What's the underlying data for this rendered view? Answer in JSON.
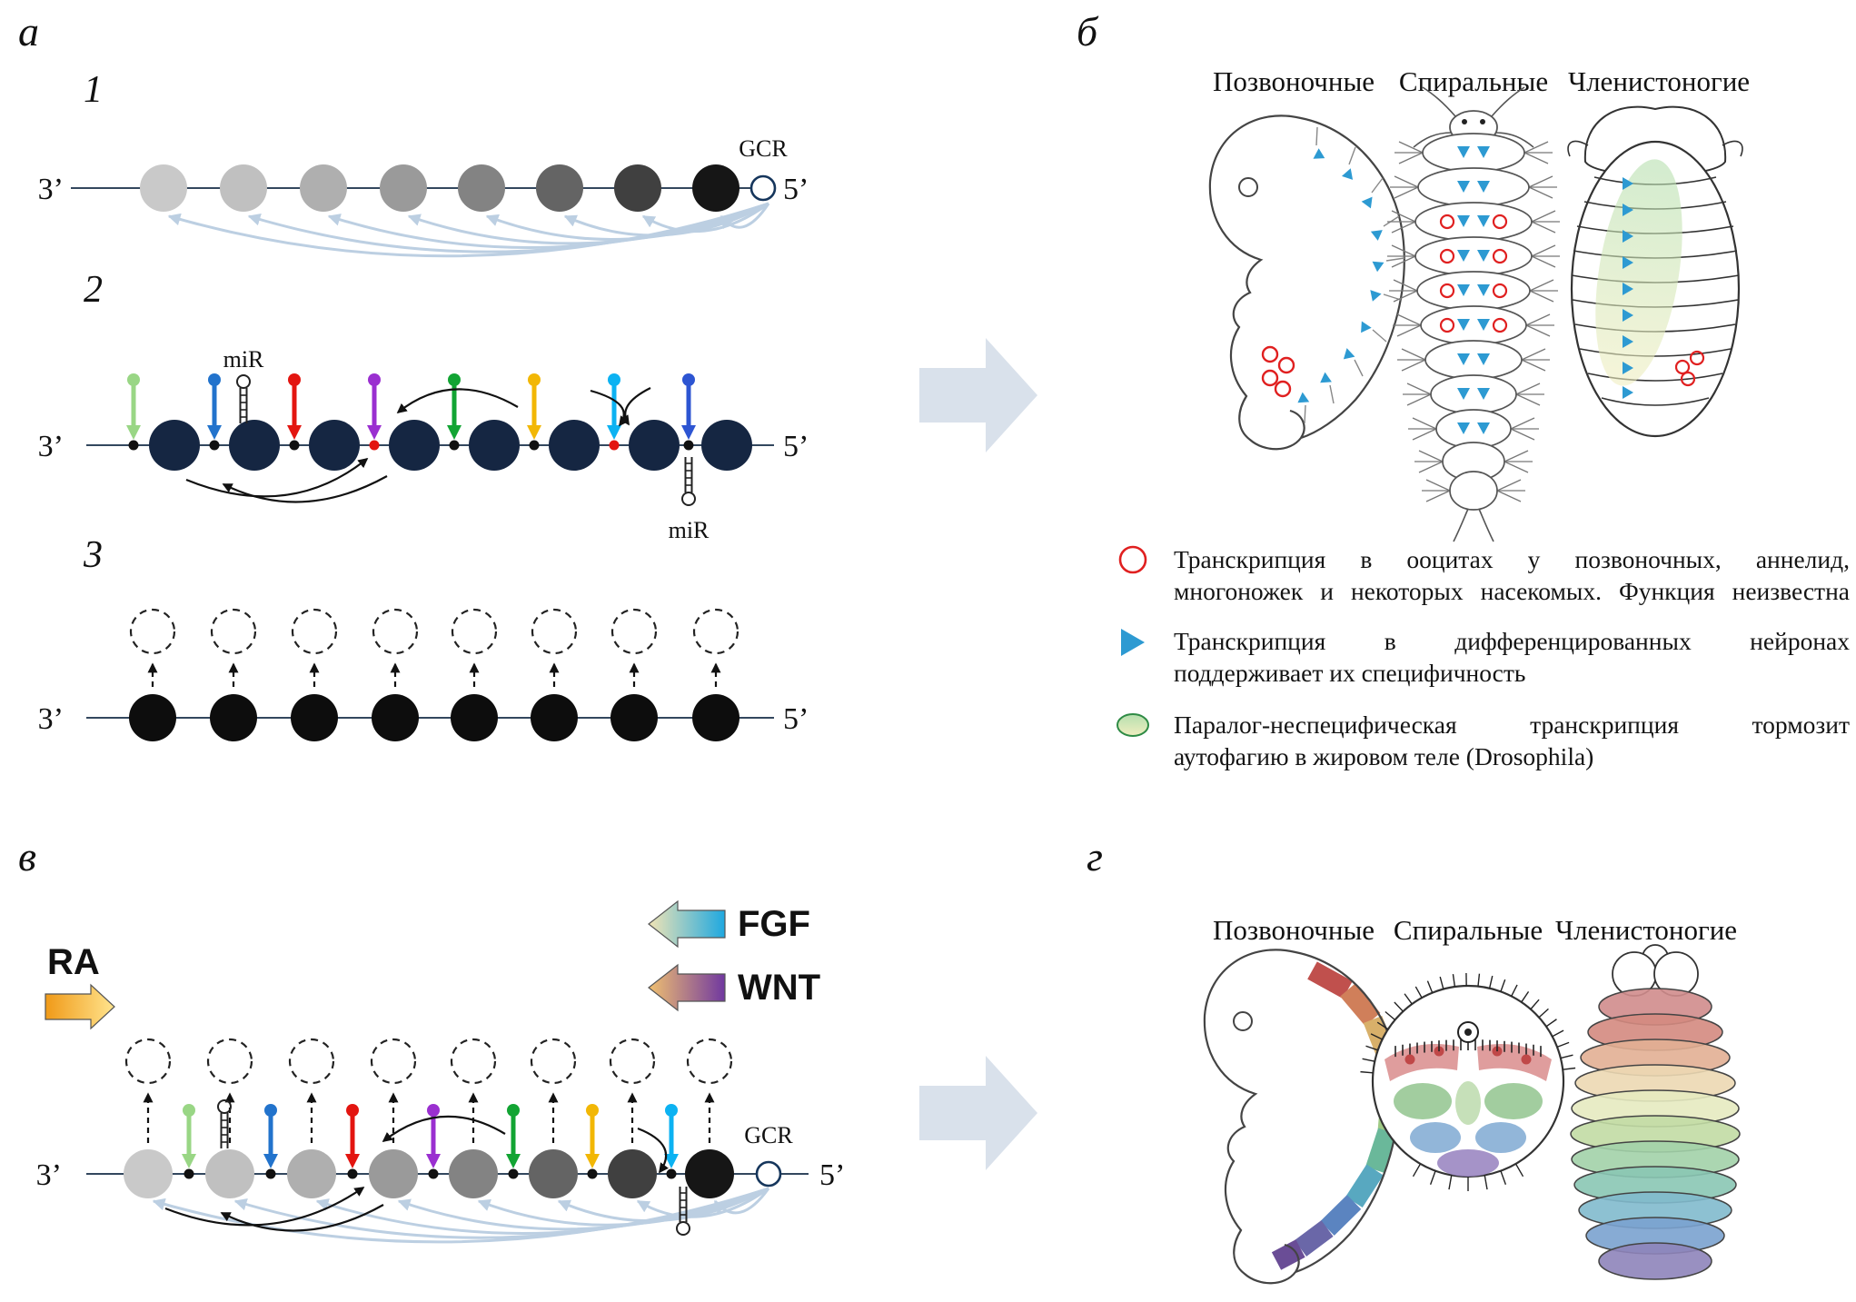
{
  "figure": {
    "panel_a": {
      "label": "а",
      "step1": "1",
      "step2": "2",
      "step3": "3"
    },
    "panel_b": {
      "label": "б"
    },
    "panel_v": {
      "label": "в"
    },
    "panel_g": {
      "label": "г"
    },
    "axis": {
      "three_prime": "3’",
      "five_prime": "5’"
    },
    "gcr_label": "GCR",
    "mir_label": "miR",
    "signals": {
      "ra": "RA",
      "fgf": "FGF",
      "wnt": "WNT"
    },
    "columns": [
      "Позвоночные",
      "Спиральные",
      "Членистоногие"
    ],
    "legend": [
      {
        "icon": "red-open-circle",
        "lines": [
          "Транскрипция в ооцитах у позвоночных, аннелид,",
          "многоножек и некоторых насекомых. Функция неизвестна"
        ]
      },
      {
        "icon": "blue-triangle",
        "lines": [
          "Транскрипция в дифференцированных нейронах",
          "поддерживает их специфичность"
        ]
      },
      {
        "icon": "green-oval",
        "lines": [
          "Паралог-неспецифическая транскрипция тормозит",
          "аутофагию в жировом теле (Drosophila)"
        ]
      }
    ]
  },
  "colors": {
    "gene_gradient": [
      "#c9c9c9",
      "#c0c0c0",
      "#afafaf",
      "#9a9a9a",
      "#838383",
      "#646464",
      "#404040",
      "#161616"
    ],
    "navy_gene": "#152642",
    "black_gene": "#0d0d0d",
    "pin_colors_full": [
      "#99d685",
      "#2273cc",
      "#e31510",
      "#9a2fd0",
      "#12a433",
      "#f2b705",
      "#0cb2f2",
      "#2d55d2"
    ],
    "pin_colors_trunk": [
      "#99d685",
      "#2273cc",
      "#e31510",
      "#9a2fd0",
      "#12a433",
      "#f2b705",
      "#0cb2f2"
    ],
    "fan_arc": "#bccfe2",
    "red_dot": "#e31510",
    "line": "#33475e",
    "gcr_ring": "#16365c",
    "block_arrow": "#d9e1eb",
    "triangle_marker": "#2d9ad2",
    "red_marker": "#e02020",
    "zone_stroke": "#2e8b45",
    "ra_grad": [
      "#f09a18",
      "#ffe48e"
    ],
    "fgf_grad": [
      "#f2e4b4",
      "#1ea8e0"
    ],
    "wnt_grad": [
      "#f0c070",
      "#7038a0"
    ],
    "zone_grad": [
      "#b5dfae",
      "#f0eec0"
    ],
    "rainbow_band": [
      "#c0504d",
      "#d07f5a",
      "#d8b06a",
      "#cfd27f",
      "#9fca84",
      "#6ab89a",
      "#58a8c0",
      "#5b84c0",
      "#6a67a8",
      "#6a4d96"
    ],
    "arthropod_bands": [
      "#d08c8c",
      "#d4897f",
      "#e2af94",
      "#ecd8b2",
      "#e6eac0",
      "#c2dba4",
      "#a2d2a8",
      "#89c7b4",
      "#81bacd",
      "#7aa2cf",
      "#8e84ba"
    ],
    "spiral_patches": {
      "red": "#d98c8c",
      "red_spot": "#c04848",
      "green": "#92c48e",
      "green_center": "#b8d8a8",
      "blue": "#7fa9d2",
      "purple": "#9b87c2"
    }
  }
}
